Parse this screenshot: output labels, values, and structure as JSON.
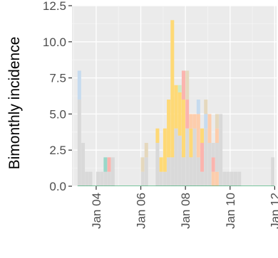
{
  "chart_data": {
    "type": "bar",
    "stacked": true,
    "title": "",
    "xlabel": "",
    "ylabel": "Bimonthly incidence",
    "ylim": [
      0,
      12.5
    ],
    "xlim": [
      "2002-12",
      "2012-02"
    ],
    "yticks": [
      0,
      2.5,
      5,
      7.5,
      10,
      12.5
    ],
    "ytick_labels": [
      "0.0",
      "2.5",
      "5.0",
      "7.5",
      "10.0",
      "12.5"
    ],
    "xticks": [
      "2004-01",
      "2006-01",
      "2008-01",
      "2010-01",
      "2012-01"
    ],
    "xtick_labels": [
      "Jan 04",
      "Jan 06",
      "Jan 08",
      "Jan 10",
      "Jan 12"
    ],
    "grid": true,
    "legend": "none",
    "panel_background": "#ebebeb",
    "bins": [
      {
        "start": "2003-03",
        "segments": [
          {
            "value": 6.0,
            "color": "#d9d9d9"
          },
          {
            "value": 2.0,
            "color": "#c6dbef"
          }
        ]
      },
      {
        "start": "2003-05",
        "segments": [
          {
            "value": 3.0,
            "color": "#d9d9d9"
          }
        ]
      },
      {
        "start": "2003-07",
        "segments": [
          {
            "value": 1.0,
            "color": "#d9d9d9"
          }
        ]
      },
      {
        "start": "2003-09",
        "segments": [
          {
            "value": 1.0,
            "color": "#d9d9d9"
          }
        ]
      },
      {
        "start": "2003-11",
        "segments": [
          {
            "value": 0.0,
            "color": "#d9d9d9"
          }
        ]
      },
      {
        "start": "2004-01",
        "segments": [
          {
            "value": 1.0,
            "color": "#d9d9d9"
          }
        ]
      },
      {
        "start": "2004-03",
        "segments": [
          {
            "value": 1.0,
            "color": "#d9d9d9"
          }
        ]
      },
      {
        "start": "2004-05",
        "segments": [
          {
            "value": 1.0,
            "color": "#d9d9d9"
          },
          {
            "value": 1.0,
            "color": "#99d8c9"
          }
        ]
      },
      {
        "start": "2004-07",
        "segments": [
          {
            "value": 1.0,
            "color": "#d9d9d9"
          },
          {
            "value": 1.0,
            "color": "#fbb4ae"
          }
        ]
      },
      {
        "start": "2004-09",
        "segments": [
          {
            "value": 2.0,
            "color": "#d9d9d9"
          }
        ]
      },
      {
        "start": "2004-11",
        "segments": [
          {
            "value": 0.0,
            "color": "#d9d9d9"
          }
        ]
      },
      {
        "start": "2005-01",
        "segments": [
          {
            "value": 0.0,
            "color": "#d9d9d9"
          }
        ]
      },
      {
        "start": "2005-03",
        "segments": [
          {
            "value": 0.0,
            "color": "#d9d9d9"
          }
        ]
      },
      {
        "start": "2005-05",
        "segments": [
          {
            "value": 0.0,
            "color": "#d9d9d9"
          }
        ]
      },
      {
        "start": "2005-07",
        "segments": [
          {
            "value": 0.0,
            "color": "#d9d9d9"
          }
        ]
      },
      {
        "start": "2005-09",
        "segments": [
          {
            "value": 0.0,
            "color": "#d9d9d9"
          }
        ]
      },
      {
        "start": "2005-11",
        "segments": [
          {
            "value": 0.0,
            "color": "#d9d9d9"
          }
        ]
      },
      {
        "start": "2006-01",
        "segments": [
          {
            "value": 1.0,
            "color": "#d9d9d9"
          },
          {
            "value": 1.0,
            "color": "#e5d8bd"
          }
        ]
      },
      {
        "start": "2006-03",
        "segments": [
          {
            "value": 2.0,
            "color": "#d9d9d9"
          },
          {
            "value": 1.0,
            "color": "#e5d8bd"
          }
        ]
      },
      {
        "start": "2006-05",
        "segments": [
          {
            "value": 0.0,
            "color": "#d9d9d9"
          }
        ]
      },
      {
        "start": "2006-07",
        "segments": [
          {
            "value": 0.0,
            "color": "#d9d9d9"
          }
        ]
      },
      {
        "start": "2006-09",
        "segments": [
          {
            "value": 3.0,
            "color": "#d9d9d9"
          },
          {
            "value": 1.0,
            "color": "#fed976"
          }
        ]
      },
      {
        "start": "2006-11",
        "segments": [
          {
            "value": 1.0,
            "color": "#d9d9d9"
          },
          {
            "value": 1.0,
            "color": "#fed976"
          }
        ]
      },
      {
        "start": "2007-01",
        "segments": [
          {
            "value": 1.0,
            "color": "#d9d9d9"
          },
          {
            "value": 3.0,
            "color": "#fed976"
          }
        ]
      },
      {
        "start": "2007-03",
        "segments": [
          {
            "value": 2.0,
            "color": "#d9d9d9"
          },
          {
            "value": 4.0,
            "color": "#fed976"
          }
        ]
      },
      {
        "start": "2007-05",
        "segments": [
          {
            "value": 2.0,
            "color": "#d9d9d9"
          },
          {
            "value": 9.5,
            "color": "#fed976"
          }
        ]
      },
      {
        "start": "2007-07",
        "segments": [
          {
            "value": 4.0,
            "color": "#d9d9d9"
          },
          {
            "value": 3.0,
            "color": "#fed976"
          }
        ]
      },
      {
        "start": "2007-09",
        "segments": [
          {
            "value": 3.5,
            "color": "#d9d9d9"
          },
          {
            "value": 3.0,
            "color": "#fed976"
          },
          {
            "value": 0.5,
            "color": "#ccebc5"
          }
        ]
      },
      {
        "start": "2007-11",
        "segments": [
          {
            "value": 2.0,
            "color": "#d9d9d9"
          },
          {
            "value": 4.0,
            "color": "#fed976"
          },
          {
            "value": 2.0,
            "color": "#fbb4ae"
          }
        ]
      },
      {
        "start": "2008-01",
        "segments": [
          {
            "value": 4.0,
            "color": "#d9d9d9"
          },
          {
            "value": 2.0,
            "color": "#fbb4ae"
          },
          {
            "value": 2.0,
            "color": "#e5d8bd"
          }
        ]
      },
      {
        "start": "2008-03",
        "segments": [
          {
            "value": 2.0,
            "color": "#d9d9d9"
          },
          {
            "value": 2.0,
            "color": "#fed976"
          },
          {
            "value": 1.0,
            "color": "#fdcdac"
          }
        ]
      },
      {
        "start": "2008-05",
        "segments": [
          {
            "value": 4.0,
            "color": "#d9d9d9"
          },
          {
            "value": 1.0,
            "color": "#fdcdac"
          }
        ]
      },
      {
        "start": "2008-07",
        "segments": [
          {
            "value": 2.0,
            "color": "#d9d9d9"
          },
          {
            "value": 3.0,
            "color": "#fdcdac"
          },
          {
            "value": 1.0,
            "color": "#c6dbef"
          }
        ]
      },
      {
        "start": "2008-09",
        "segments": [
          {
            "value": 1.0,
            "color": "#d9d9d9"
          },
          {
            "value": 2.0,
            "color": "#fbb4ae"
          },
          {
            "value": 1.0,
            "color": "#fed976"
          }
        ]
      },
      {
        "start": "2008-11",
        "segments": [
          {
            "value": 4.0,
            "color": "#d9d9d9"
          },
          {
            "value": 1.0,
            "color": "#c6dbef"
          },
          {
            "value": 1.0,
            "color": "#e5d8bd"
          }
        ]
      },
      {
        "start": "2009-01",
        "segments": [
          {
            "value": 3.0,
            "color": "#d9d9d9"
          },
          {
            "value": 2.0,
            "color": "#fdcdac"
          }
        ]
      },
      {
        "start": "2009-03",
        "segments": [
          {
            "value": 1.0,
            "color": "#fdcdac"
          },
          {
            "value": 1.0,
            "color": "#fbb4ae"
          },
          {
            "value": 1.0,
            "color": "#d9d9d9"
          }
        ]
      },
      {
        "start": "2009-05",
        "segments": [
          {
            "value": 1.0,
            "color": "#fdcdac"
          },
          {
            "value": 2.0,
            "color": "#d9d9d9"
          },
          {
            "value": 1.0,
            "color": "#fdcdac"
          },
          {
            "value": 1.0,
            "color": "#e5d8bd"
          }
        ]
      },
      {
        "start": "2009-07",
        "segments": [
          {
            "value": 4.0,
            "color": "#d9d9d9"
          },
          {
            "value": 1.0,
            "color": "#d9d9d9"
          }
        ]
      },
      {
        "start": "2009-09",
        "segments": [
          {
            "value": 1.0,
            "color": "#d9d9d9"
          }
        ]
      },
      {
        "start": "2009-11",
        "segments": [
          {
            "value": 1.0,
            "color": "#d9d9d9"
          }
        ]
      },
      {
        "start": "2010-01",
        "segments": [
          {
            "value": 1.0,
            "color": "#d9d9d9"
          }
        ]
      },
      {
        "start": "2010-03",
        "segments": [
          {
            "value": 1.0,
            "color": "#d9d9d9"
          }
        ]
      },
      {
        "start": "2010-05",
        "segments": [
          {
            "value": 1.0,
            "color": "#d9d9d9"
          }
        ]
      },
      {
        "start": "2010-07",
        "segments": [
          {
            "value": 0.0,
            "color": "#d9d9d9"
          }
        ]
      },
      {
        "start": "2010-09",
        "segments": [
          {
            "value": 0.0,
            "color": "#d9d9d9"
          }
        ]
      },
      {
        "start": "2010-11",
        "segments": [
          {
            "value": 0.0,
            "color": "#d9d9d9"
          }
        ]
      },
      {
        "start": "2011-01",
        "segments": [
          {
            "value": 0.0,
            "color": "#d9d9d9"
          }
        ]
      },
      {
        "start": "2011-03",
        "segments": [
          {
            "value": 0.0,
            "color": "#d9d9d9"
          }
        ]
      },
      {
        "start": "2011-05",
        "segments": [
          {
            "value": 0.0,
            "color": "#d9d9d9"
          }
        ]
      },
      {
        "start": "2011-07",
        "segments": [
          {
            "value": 0.0,
            "color": "#d9d9d9"
          }
        ]
      },
      {
        "start": "2011-09",
        "segments": [
          {
            "value": 0.0,
            "color": "#d9d9d9"
          }
        ]
      },
      {
        "start": "2011-11",
        "segments": [
          {
            "value": 2.0,
            "color": "#d9d9d9"
          }
        ]
      }
    ],
    "baseline_color": "#41ae76"
  }
}
